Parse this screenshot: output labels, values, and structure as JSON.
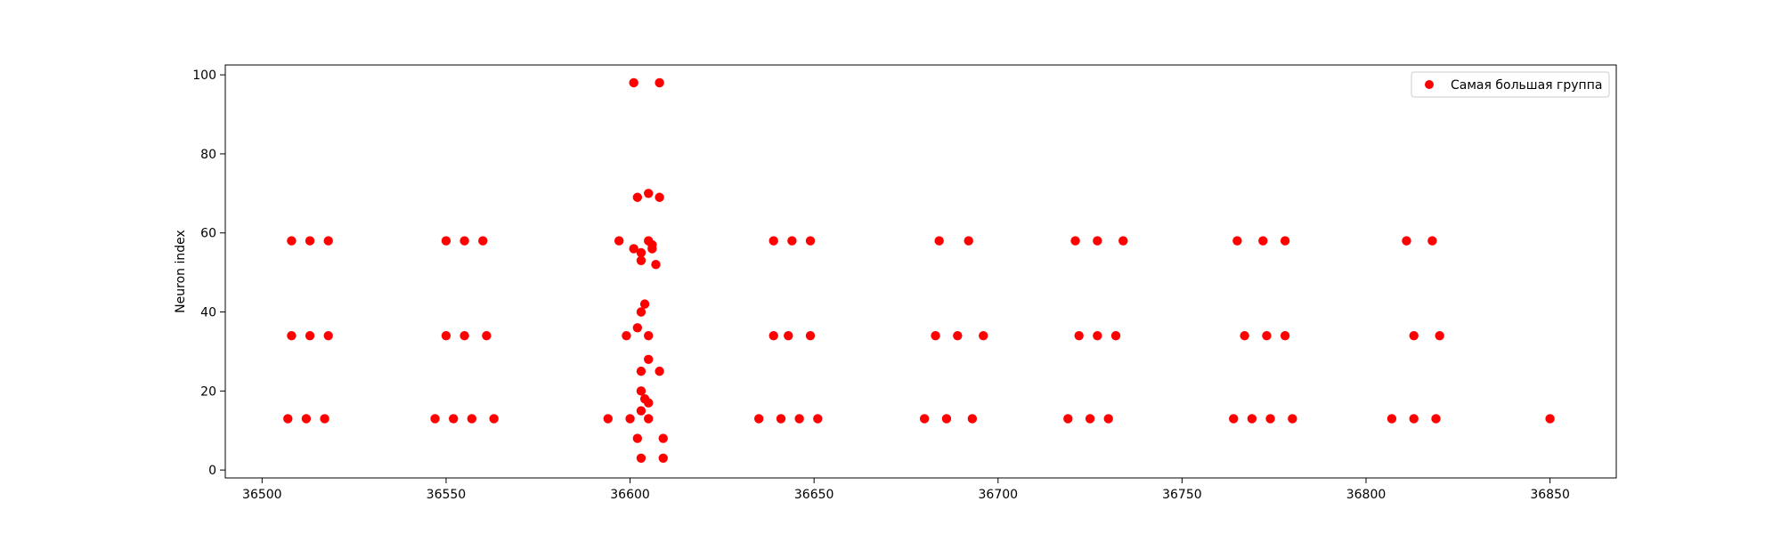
{
  "chart_data": {
    "type": "scatter",
    "title": "",
    "xlabel": "",
    "ylabel": "Neuron index",
    "xlim": [
      36490,
      36868
    ],
    "ylim": [
      -2,
      102.5
    ],
    "xticks": [
      36500,
      36550,
      36600,
      36650,
      36700,
      36750,
      36800,
      36850
    ],
    "yticks": [
      0,
      20,
      40,
      60,
      80,
      100
    ],
    "grid": false,
    "legend_position": "top-right",
    "series": [
      {
        "name": "Самая большая группа",
        "color": "#ff0000",
        "points": [
          {
            "x": 36508,
            "y": 58
          },
          {
            "x": 36513,
            "y": 58
          },
          {
            "x": 36518,
            "y": 58
          },
          {
            "x": 36508,
            "y": 34
          },
          {
            "x": 36513,
            "y": 34
          },
          {
            "x": 36518,
            "y": 34
          },
          {
            "x": 36507,
            "y": 13
          },
          {
            "x": 36512,
            "y": 13
          },
          {
            "x": 36517,
            "y": 13
          },
          {
            "x": 36550,
            "y": 58
          },
          {
            "x": 36555,
            "y": 58
          },
          {
            "x": 36560,
            "y": 58
          },
          {
            "x": 36550,
            "y": 34
          },
          {
            "x": 36555,
            "y": 34
          },
          {
            "x": 36561,
            "y": 34
          },
          {
            "x": 36547,
            "y": 13
          },
          {
            "x": 36552,
            "y": 13
          },
          {
            "x": 36557,
            "y": 13
          },
          {
            "x": 36563,
            "y": 13
          },
          {
            "x": 36601,
            "y": 98
          },
          {
            "x": 36608,
            "y": 98
          },
          {
            "x": 36605,
            "y": 70
          },
          {
            "x": 36602,
            "y": 69
          },
          {
            "x": 36608,
            "y": 69
          },
          {
            "x": 36597,
            "y": 58
          },
          {
            "x": 36605,
            "y": 58
          },
          {
            "x": 36601,
            "y": 56
          },
          {
            "x": 36606,
            "y": 57
          },
          {
            "x": 36603,
            "y": 55
          },
          {
            "x": 36606,
            "y": 56
          },
          {
            "x": 36603,
            "y": 53
          },
          {
            "x": 36607,
            "y": 52
          },
          {
            "x": 36604,
            "y": 42
          },
          {
            "x": 36603,
            "y": 40
          },
          {
            "x": 36602,
            "y": 36
          },
          {
            "x": 36599,
            "y": 34
          },
          {
            "x": 36605,
            "y": 34
          },
          {
            "x": 36605,
            "y": 28
          },
          {
            "x": 36603,
            "y": 25
          },
          {
            "x": 36608,
            "y": 25
          },
          {
            "x": 36603,
            "y": 20
          },
          {
            "x": 36604,
            "y": 18
          },
          {
            "x": 36605,
            "y": 17
          },
          {
            "x": 36603,
            "y": 15
          },
          {
            "x": 36594,
            "y": 13
          },
          {
            "x": 36600,
            "y": 13
          },
          {
            "x": 36605,
            "y": 13
          },
          {
            "x": 36602,
            "y": 8
          },
          {
            "x": 36609,
            "y": 8
          },
          {
            "x": 36603,
            "y": 3
          },
          {
            "x": 36609,
            "y": 3
          },
          {
            "x": 36639,
            "y": 58
          },
          {
            "x": 36644,
            "y": 58
          },
          {
            "x": 36649,
            "y": 58
          },
          {
            "x": 36639,
            "y": 34
          },
          {
            "x": 36643,
            "y": 34
          },
          {
            "x": 36649,
            "y": 34
          },
          {
            "x": 36635,
            "y": 13
          },
          {
            "x": 36641,
            "y": 13
          },
          {
            "x": 36646,
            "y": 13
          },
          {
            "x": 36651,
            "y": 13
          },
          {
            "x": 36684,
            "y": 58
          },
          {
            "x": 36692,
            "y": 58
          },
          {
            "x": 36683,
            "y": 34
          },
          {
            "x": 36689,
            "y": 34
          },
          {
            "x": 36696,
            "y": 34
          },
          {
            "x": 36680,
            "y": 13
          },
          {
            "x": 36686,
            "y": 13
          },
          {
            "x": 36693,
            "y": 13
          },
          {
            "x": 36721,
            "y": 58
          },
          {
            "x": 36727,
            "y": 58
          },
          {
            "x": 36734,
            "y": 58
          },
          {
            "x": 36722,
            "y": 34
          },
          {
            "x": 36727,
            "y": 34
          },
          {
            "x": 36732,
            "y": 34
          },
          {
            "x": 36719,
            "y": 13
          },
          {
            "x": 36725,
            "y": 13
          },
          {
            "x": 36730,
            "y": 13
          },
          {
            "x": 36765,
            "y": 58
          },
          {
            "x": 36772,
            "y": 58
          },
          {
            "x": 36778,
            "y": 58
          },
          {
            "x": 36767,
            "y": 34
          },
          {
            "x": 36773,
            "y": 34
          },
          {
            "x": 36778,
            "y": 34
          },
          {
            "x": 36764,
            "y": 13
          },
          {
            "x": 36769,
            "y": 13
          },
          {
            "x": 36774,
            "y": 13
          },
          {
            "x": 36780,
            "y": 13
          },
          {
            "x": 36811,
            "y": 58
          },
          {
            "x": 36818,
            "y": 58
          },
          {
            "x": 36813,
            "y": 34
          },
          {
            "x": 36820,
            "y": 34
          },
          {
            "x": 36807,
            "y": 13
          },
          {
            "x": 36813,
            "y": 13
          },
          {
            "x": 36819,
            "y": 13
          },
          {
            "x": 36850,
            "y": 13
          }
        ]
      }
    ]
  }
}
